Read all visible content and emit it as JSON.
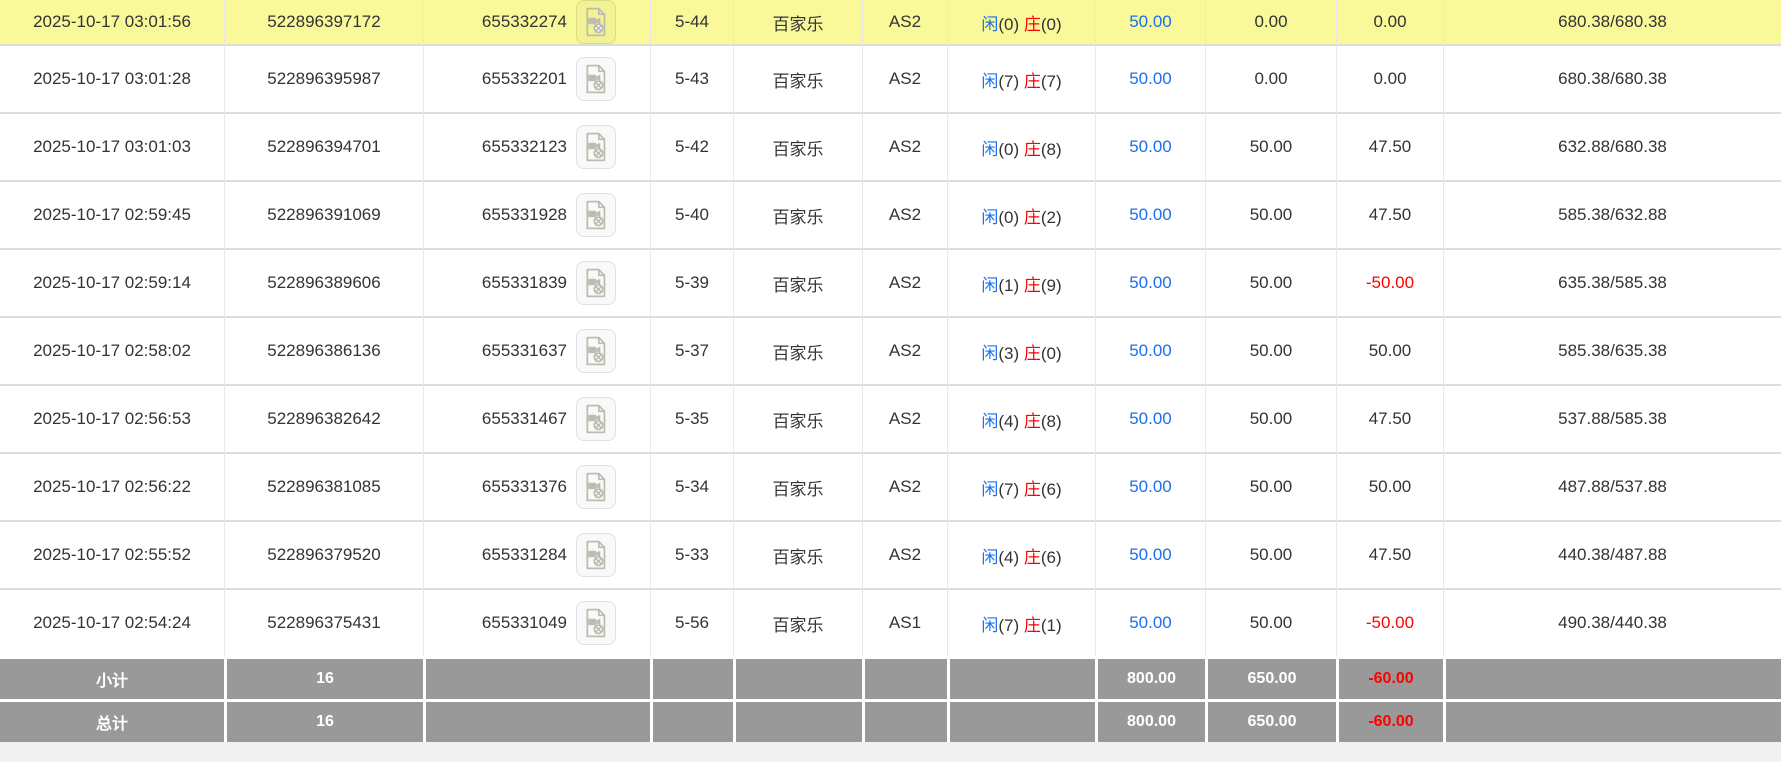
{
  "colors": {
    "highlight": "#f9f99a",
    "summary-bg": "#999999",
    "blue": "#1b6ff0",
    "red": "#ff0000",
    "text": "#333333",
    "icon-gray": "#bcbcb0"
  },
  "table": {
    "columns": [
      {
        "key": "time"
      },
      {
        "key": "order_id"
      },
      {
        "key": "bet_id"
      },
      {
        "key": "round"
      },
      {
        "key": "game"
      },
      {
        "key": "table_code"
      },
      {
        "key": "result"
      },
      {
        "key": "bet_amount"
      },
      {
        "key": "valid_amount"
      },
      {
        "key": "win_loss"
      },
      {
        "key": "balance"
      }
    ],
    "video_icon_name": "video-file-icon",
    "rows": [
      {
        "highlighted": true,
        "time": "2025-10-17 03:01:56",
        "order_id": "522896397172",
        "bet_id": "655332274",
        "round": "5-44",
        "game": "百家乐",
        "table_code": "AS2",
        "result": {
          "player": "闲",
          "player_score": "(0)",
          "banker": "庄",
          "banker_score": "(0)"
        },
        "bet_amount": "50.00",
        "valid_amount": "0.00",
        "win_loss": "0.00",
        "balance": "680.38/680.38"
      },
      {
        "highlighted": false,
        "time": "2025-10-17 03:01:28",
        "order_id": "522896395987",
        "bet_id": "655332201",
        "round": "5-43",
        "game": "百家乐",
        "table_code": "AS2",
        "result": {
          "player": "闲",
          "player_score": "(7)",
          "banker": "庄",
          "banker_score": "(7)"
        },
        "bet_amount": "50.00",
        "valid_amount": "0.00",
        "win_loss": "0.00",
        "balance": "680.38/680.38"
      },
      {
        "highlighted": false,
        "time": "2025-10-17 03:01:03",
        "order_id": "522896394701",
        "bet_id": "655332123",
        "round": "5-42",
        "game": "百家乐",
        "table_code": "AS2",
        "result": {
          "player": "闲",
          "player_score": "(0)",
          "banker": "庄",
          "banker_score": "(8)"
        },
        "bet_amount": "50.00",
        "valid_amount": "50.00",
        "win_loss": "47.50",
        "balance": "632.88/680.38"
      },
      {
        "highlighted": false,
        "time": "2025-10-17 02:59:45",
        "order_id": "522896391069",
        "bet_id": "655331928",
        "round": "5-40",
        "game": "百家乐",
        "table_code": "AS2",
        "result": {
          "player": "闲",
          "player_score": "(0)",
          "banker": "庄",
          "banker_score": "(2)"
        },
        "bet_amount": "50.00",
        "valid_amount": "50.00",
        "win_loss": "47.50",
        "balance": "585.38/632.88"
      },
      {
        "highlighted": false,
        "time": "2025-10-17 02:59:14",
        "order_id": "522896389606",
        "bet_id": "655331839",
        "round": "5-39",
        "game": "百家乐",
        "table_code": "AS2",
        "result": {
          "player": "闲",
          "player_score": "(1)",
          "banker": "庄",
          "banker_score": "(9)"
        },
        "bet_amount": "50.00",
        "valid_amount": "50.00",
        "win_loss": "-50.00",
        "balance": "635.38/585.38"
      },
      {
        "highlighted": false,
        "time": "2025-10-17 02:58:02",
        "order_id": "522896386136",
        "bet_id": "655331637",
        "round": "5-37",
        "game": "百家乐",
        "table_code": "AS2",
        "result": {
          "player": "闲",
          "player_score": "(3)",
          "banker": "庄",
          "banker_score": "(0)"
        },
        "bet_amount": "50.00",
        "valid_amount": "50.00",
        "win_loss": "50.00",
        "balance": "585.38/635.38"
      },
      {
        "highlighted": false,
        "time": "2025-10-17 02:56:53",
        "order_id": "522896382642",
        "bet_id": "655331467",
        "round": "5-35",
        "game": "百家乐",
        "table_code": "AS2",
        "result": {
          "player": "闲",
          "player_score": "(4)",
          "banker": "庄",
          "banker_score": "(8)"
        },
        "bet_amount": "50.00",
        "valid_amount": "50.00",
        "win_loss": "47.50",
        "balance": "537.88/585.38"
      },
      {
        "highlighted": false,
        "time": "2025-10-17 02:56:22",
        "order_id": "522896381085",
        "bet_id": "655331376",
        "round": "5-34",
        "game": "百家乐",
        "table_code": "AS2",
        "result": {
          "player": "闲",
          "player_score": "(7)",
          "banker": "庄",
          "banker_score": "(6)"
        },
        "bet_amount": "50.00",
        "valid_amount": "50.00",
        "win_loss": "50.00",
        "balance": "487.88/537.88"
      },
      {
        "highlighted": false,
        "time": "2025-10-17 02:55:52",
        "order_id": "522896379520",
        "bet_id": "655331284",
        "round": "5-33",
        "game": "百家乐",
        "table_code": "AS2",
        "result": {
          "player": "闲",
          "player_score": "(4)",
          "banker": "庄",
          "banker_score": "(6)"
        },
        "bet_amount": "50.00",
        "valid_amount": "50.00",
        "win_loss": "47.50",
        "balance": "440.38/487.88"
      },
      {
        "highlighted": false,
        "time": "2025-10-17 02:54:24",
        "order_id": "522896375431",
        "bet_id": "655331049",
        "round": "5-56",
        "game": "百家乐",
        "table_code": "AS1",
        "result": {
          "player": "闲",
          "player_score": "(7)",
          "banker": "庄",
          "banker_score": "(1)"
        },
        "bet_amount": "50.00",
        "valid_amount": "50.00",
        "win_loss": "-50.00",
        "balance": "490.38/440.38"
      }
    ],
    "subtotal": {
      "label": "小计",
      "count": "16",
      "bet_total": "800.00",
      "valid_total": "650.00",
      "win_loss_total": "-60.00"
    },
    "total": {
      "label": "总计",
      "count": "16",
      "bet_total": "800.00",
      "valid_total": "650.00",
      "win_loss_total": "-60.00"
    }
  }
}
